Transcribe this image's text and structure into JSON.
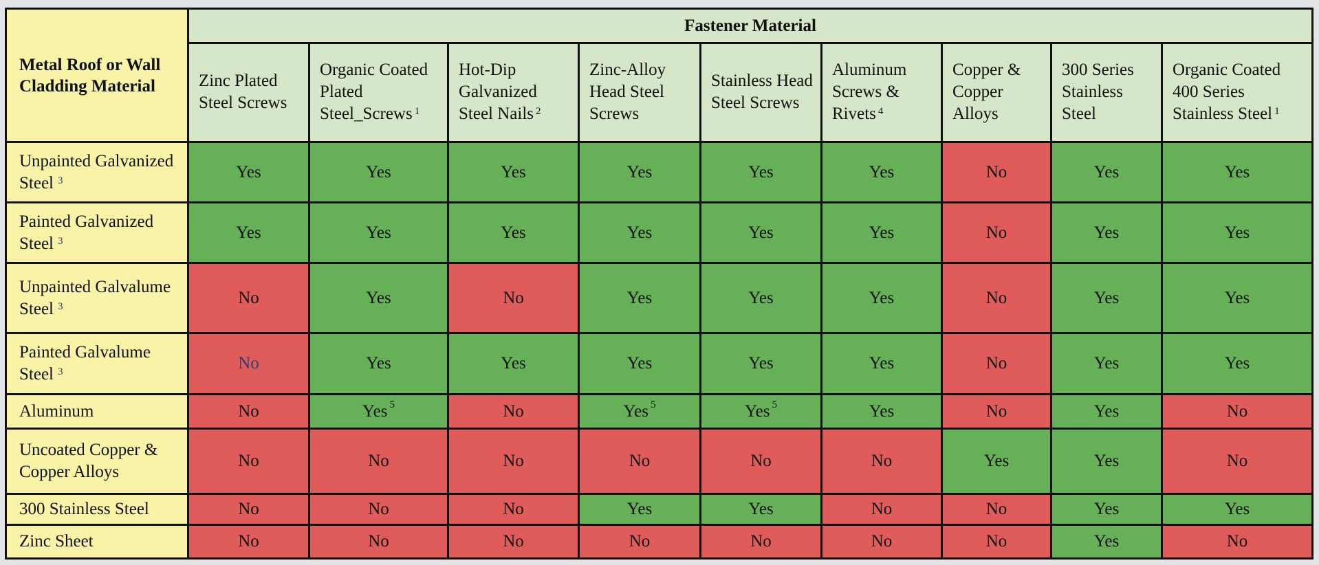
{
  "corner_label": "Metal Roof or Wall Cladding Material",
  "group_label": "Fastener Material",
  "colors": {
    "yes": "#66b157",
    "no": "#df5c5b",
    "header": "#d6e6c8",
    "row_header": "#f8f3a6"
  },
  "columns": [
    {
      "label": "Zinc Plated Steel Screws",
      "sup": ""
    },
    {
      "label": "Organic Coated Plated Steel_Screws",
      "sup": "1"
    },
    {
      "label": "Hot-Dip Galvanized Steel Nails",
      "sup": "2"
    },
    {
      "label": "Zinc-Alloy Head Steel Screws",
      "sup": ""
    },
    {
      "label": "Stainless Head Steel Screws",
      "sup": ""
    },
    {
      "label": "Aluminum Screws & Rivets",
      "sup": "4"
    },
    {
      "label": "Copper & Copper Alloys",
      "sup": ""
    },
    {
      "label": "300 Series Stainless Steel",
      "sup": ""
    },
    {
      "label": "Organic Coated 400 Series Stainless Steel",
      "sup": "1"
    }
  ],
  "rows": [
    {
      "label": "Unpainted Galvanized Steel",
      "sup": "3",
      "cells": [
        {
          "v": "Yes",
          "sup": ""
        },
        {
          "v": "Yes",
          "sup": ""
        },
        {
          "v": "Yes",
          "sup": ""
        },
        {
          "v": "Yes",
          "sup": ""
        },
        {
          "v": "Yes",
          "sup": ""
        },
        {
          "v": "Yes",
          "sup": ""
        },
        {
          "v": "No",
          "sup": ""
        },
        {
          "v": "Yes",
          "sup": ""
        },
        {
          "v": "Yes",
          "sup": ""
        }
      ]
    },
    {
      "label": "Painted Galvanized Steel",
      "sup": "3",
      "cells": [
        {
          "v": "Yes",
          "sup": ""
        },
        {
          "v": "Yes",
          "sup": ""
        },
        {
          "v": "Yes",
          "sup": ""
        },
        {
          "v": "Yes",
          "sup": ""
        },
        {
          "v": "Yes",
          "sup": ""
        },
        {
          "v": "Yes",
          "sup": ""
        },
        {
          "v": "No",
          "sup": ""
        },
        {
          "v": "Yes",
          "sup": ""
        },
        {
          "v": "Yes",
          "sup": ""
        }
      ]
    },
    {
      "label": "Unpainted Galvalume Steel",
      "sup": "3",
      "cells": [
        {
          "v": "No",
          "sup": ""
        },
        {
          "v": "Yes",
          "sup": ""
        },
        {
          "v": "No",
          "sup": ""
        },
        {
          "v": "Yes",
          "sup": ""
        },
        {
          "v": "Yes",
          "sup": ""
        },
        {
          "v": "Yes",
          "sup": ""
        },
        {
          "v": "No",
          "sup": ""
        },
        {
          "v": "Yes",
          "sup": ""
        },
        {
          "v": "Yes",
          "sup": ""
        }
      ]
    },
    {
      "label": "Painted Galvalume Steel",
      "sup": "3",
      "cells": [
        {
          "v": "No",
          "sup": "",
          "blue": true
        },
        {
          "v": "Yes",
          "sup": ""
        },
        {
          "v": "Yes",
          "sup": ""
        },
        {
          "v": "Yes",
          "sup": ""
        },
        {
          "v": "Yes",
          "sup": ""
        },
        {
          "v": "Yes",
          "sup": ""
        },
        {
          "v": "No",
          "sup": ""
        },
        {
          "v": "Yes",
          "sup": ""
        },
        {
          "v": "Yes",
          "sup": ""
        }
      ]
    },
    {
      "label": "Aluminum",
      "sup": "",
      "cells": [
        {
          "v": "No",
          "sup": ""
        },
        {
          "v": "Yes",
          "sup": "5"
        },
        {
          "v": "No",
          "sup": ""
        },
        {
          "v": "Yes",
          "sup": "5"
        },
        {
          "v": "Yes",
          "sup": "5"
        },
        {
          "v": "Yes",
          "sup": ""
        },
        {
          "v": "No",
          "sup": ""
        },
        {
          "v": "Yes",
          "sup": ""
        },
        {
          "v": "No",
          "sup": ""
        }
      ]
    },
    {
      "label": "Uncoated Copper & Copper Alloys",
      "sup": "",
      "cells": [
        {
          "v": "No",
          "sup": ""
        },
        {
          "v": "No",
          "sup": ""
        },
        {
          "v": "No",
          "sup": ""
        },
        {
          "v": "No",
          "sup": ""
        },
        {
          "v": "No",
          "sup": ""
        },
        {
          "v": "No",
          "sup": ""
        },
        {
          "v": "Yes",
          "sup": ""
        },
        {
          "v": "Yes",
          "sup": ""
        },
        {
          "v": "No",
          "sup": ""
        }
      ]
    },
    {
      "label": "300 Stainless Steel",
      "sup": "",
      "cells": [
        {
          "v": "No",
          "sup": ""
        },
        {
          "v": "No",
          "sup": ""
        },
        {
          "v": "No",
          "sup": ""
        },
        {
          "v": "Yes",
          "sup": ""
        },
        {
          "v": "Yes",
          "sup": ""
        },
        {
          "v": "No",
          "sup": ""
        },
        {
          "v": "No",
          "sup": ""
        },
        {
          "v": "Yes",
          "sup": ""
        },
        {
          "v": "Yes",
          "sup": ""
        }
      ]
    },
    {
      "label": "Zinc Sheet",
      "sup": "",
      "cells": [
        {
          "v": "No",
          "sup": ""
        },
        {
          "v": "No",
          "sup": ""
        },
        {
          "v": "No",
          "sup": ""
        },
        {
          "v": "No",
          "sup": ""
        },
        {
          "v": "No",
          "sup": ""
        },
        {
          "v": "No",
          "sup": ""
        },
        {
          "v": "No",
          "sup": ""
        },
        {
          "v": "Yes",
          "sup": ""
        },
        {
          "v": "No",
          "sup": ""
        }
      ]
    }
  ]
}
